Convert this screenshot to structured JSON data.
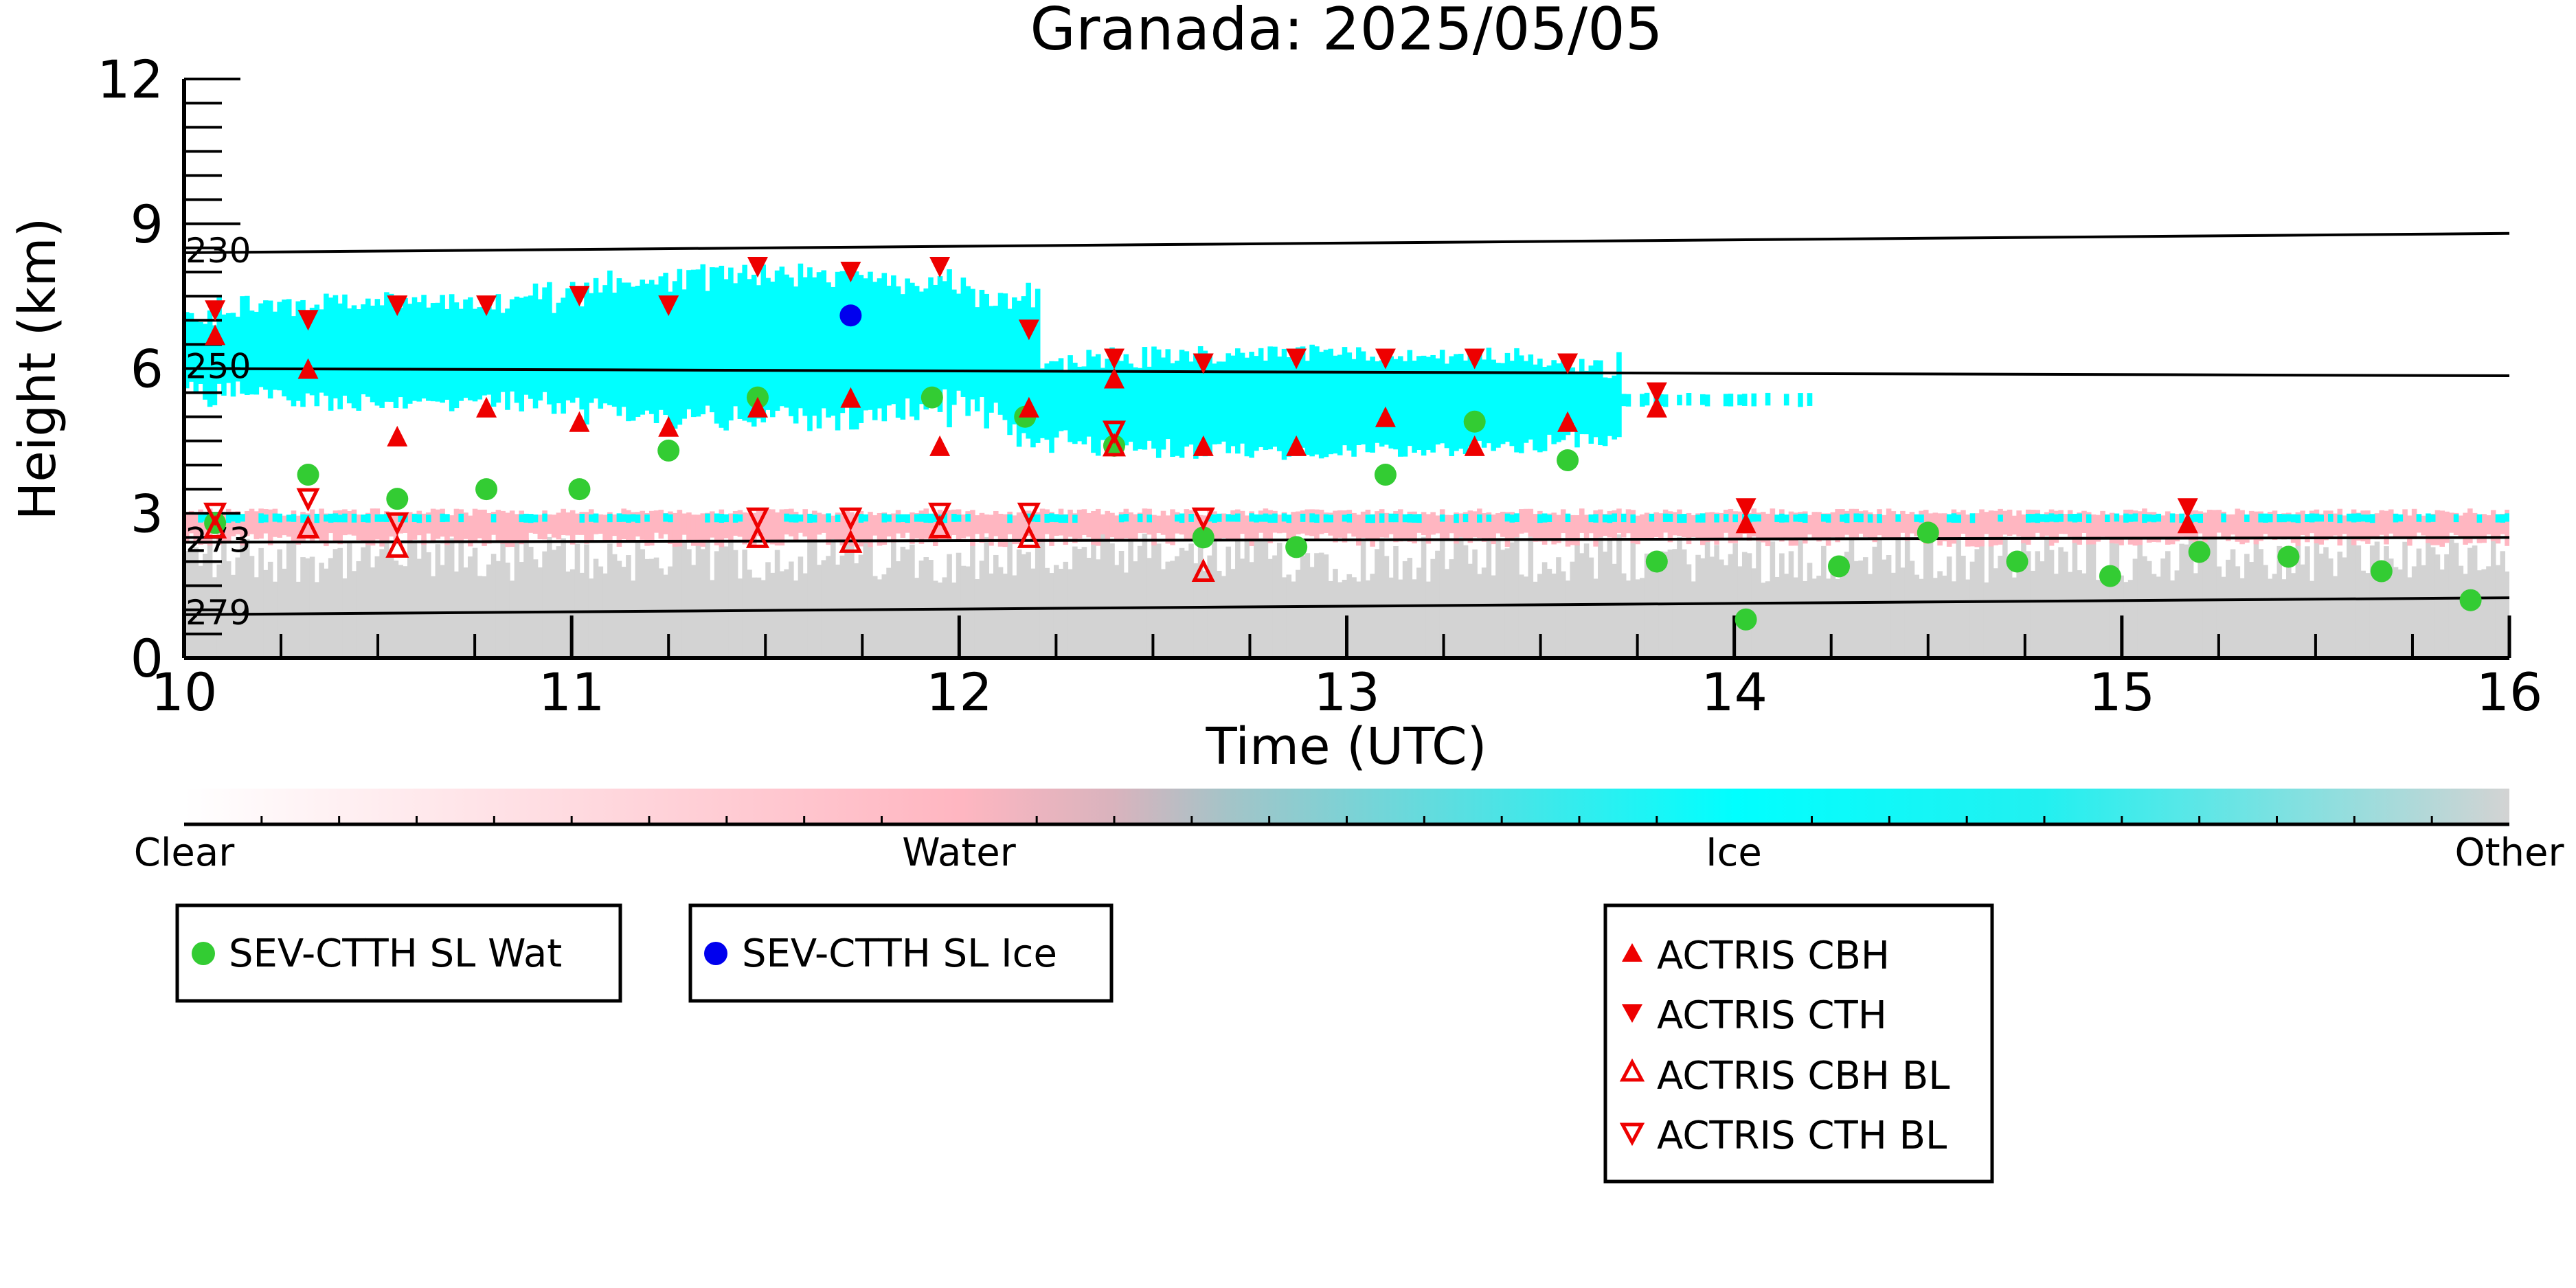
{
  "chart_data": {
    "type": "scatter",
    "title": "Granada: 2025/05/05",
    "xlabel": "Time (UTC)",
    "ylabel": "Height (km)",
    "xlim": [
      10,
      16
    ],
    "ylim": [
      0,
      12
    ],
    "xticks": [
      10,
      11,
      12,
      13,
      14,
      15,
      16
    ],
    "yticks": [
      0,
      3,
      6,
      9,
      12
    ],
    "grid": false,
    "isotherms": [
      {
        "label": "230",
        "y_start": 8.4,
        "y_end": 8.8
      },
      {
        "label": "250",
        "y_start": 6.0,
        "y_end": 5.85
      },
      {
        "label": "273",
        "y_start": 2.4,
        "y_end": 2.5
      },
      {
        "label": "279",
        "y_start": 0.9,
        "y_end": 1.25
      }
    ],
    "colorbar": {
      "labels": [
        "Clear",
        "Water",
        "Ice",
        "Other"
      ],
      "colors": [
        "#ffffff",
        "#ffb6c1",
        "#00ffff",
        "#d3d3d3"
      ]
    },
    "classification_layers": [
      {
        "class": "Ice",
        "color": "#00ffff",
        "t_start": 10.0,
        "t_end": 11.2,
        "h_low": 5.1,
        "h_high": 7.6
      },
      {
        "class": "Ice",
        "color": "#00ffff",
        "t_start": 10.9,
        "t_end": 12.2,
        "h_low": 4.7,
        "h_high": 8.2
      },
      {
        "class": "Ice",
        "color": "#00ffff",
        "t_start": 12.1,
        "t_end": 13.7,
        "h_low": 4.1,
        "h_high": 6.5
      },
      {
        "class": "Ice",
        "color": "#00ffff",
        "t_start": 13.6,
        "t_end": 14.2,
        "h_low": 5.2,
        "h_high": 5.5
      },
      {
        "class": "Water",
        "color": "#ffb6c1",
        "t_start": 10.0,
        "t_end": 16.0,
        "h_low": 2.3,
        "h_high": 3.1
      },
      {
        "class": "Ice",
        "color": "#00ffff",
        "t_start": 10.0,
        "t_end": 16.0,
        "h_low": 2.8,
        "h_high": 3.0
      },
      {
        "class": "Other",
        "color": "#d3d3d3",
        "t_start": 10.0,
        "t_end": 16.0,
        "h_low": 0.0,
        "h_high": 2.6
      }
    ],
    "series": [
      {
        "name": "SEV-CTTH SL Wat",
        "marker": "circle",
        "color": "#33cc33",
        "x": [
          10.08,
          10.32,
          10.55,
          10.78,
          11.02,
          11.25,
          11.48,
          11.93,
          12.17,
          12.4,
          12.63,
          12.87,
          13.1,
          13.33,
          13.57,
          13.8,
          14.03,
          14.27,
          14.5,
          14.73,
          14.97,
          15.2,
          15.43,
          15.67,
          15.9
        ],
        "y": [
          2.8,
          3.8,
          3.3,
          3.5,
          3.5,
          4.3,
          5.4,
          5.4,
          5.0,
          4.4,
          2.5,
          2.3,
          3.8,
          4.9,
          4.1,
          2.0,
          0.8,
          1.9,
          2.6,
          2.0,
          1.7,
          2.2,
          2.1,
          1.8,
          1.2
        ]
      },
      {
        "name": "SEV-CTTH SL Ice",
        "marker": "circle",
        "color": "#0000ee",
        "x": [
          11.72
        ],
        "y": [
          7.1
        ]
      },
      {
        "name": "ACTRIS CBH",
        "marker": "triangle-up-filled",
        "color": "#ee0000",
        "x": [
          10.08,
          10.32,
          10.55,
          10.78,
          11.02,
          11.25,
          11.48,
          11.72,
          11.95,
          12.18,
          12.4,
          12.63,
          12.87,
          13.1,
          13.33,
          13.57,
          13.8,
          14.03,
          15.17
        ],
        "y": [
          6.7,
          6.0,
          4.6,
          5.2,
          4.9,
          4.8,
          5.2,
          5.4,
          4.4,
          5.2,
          5.8,
          4.4,
          4.4,
          5.0,
          4.4,
          4.9,
          5.2,
          2.8,
          2.8
        ]
      },
      {
        "name": "ACTRIS CTH",
        "marker": "triangle-down-filled",
        "color": "#ee0000",
        "x": [
          10.08,
          10.32,
          10.55,
          10.78,
          11.02,
          11.25,
          11.48,
          11.72,
          11.95,
          12.18,
          12.4,
          12.63,
          12.87,
          13.1,
          13.33,
          13.57,
          13.8,
          14.03,
          15.17
        ],
        "y": [
          7.2,
          7.0,
          7.3,
          7.3,
          7.5,
          7.3,
          8.1,
          8.0,
          8.1,
          6.8,
          6.2,
          6.1,
          6.2,
          6.2,
          6.2,
          6.1,
          5.5,
          3.1,
          3.1
        ]
      },
      {
        "name": "ACTRIS CBH BL",
        "marker": "triangle-up-open",
        "color": "#ee0000",
        "x": [
          10.08,
          10.32,
          10.55,
          11.48,
          11.72,
          11.95,
          12.18,
          12.4,
          12.63
        ],
        "y": [
          2.7,
          2.7,
          2.3,
          2.5,
          2.4,
          2.7,
          2.5,
          4.4,
          1.8
        ]
      },
      {
        "name": "ACTRIS CTH BL",
        "marker": "triangle-down-open",
        "color": "#ee0000",
        "x": [
          10.08,
          10.32,
          10.55,
          11.48,
          11.72,
          11.95,
          12.18,
          12.4,
          12.63
        ],
        "y": [
          3.0,
          3.3,
          2.8,
          2.9,
          2.9,
          3.0,
          3.0,
          4.7,
          2.9
        ]
      }
    ],
    "legends": [
      {
        "entries": [
          "SEV-CTTH SL Wat"
        ]
      },
      {
        "entries": [
          "SEV-CTTH SL Ice"
        ]
      },
      {
        "entries": [
          "ACTRIS CBH",
          "ACTRIS CTH",
          "ACTRIS CBH BL",
          "ACTRIS CTH BL"
        ]
      }
    ]
  }
}
